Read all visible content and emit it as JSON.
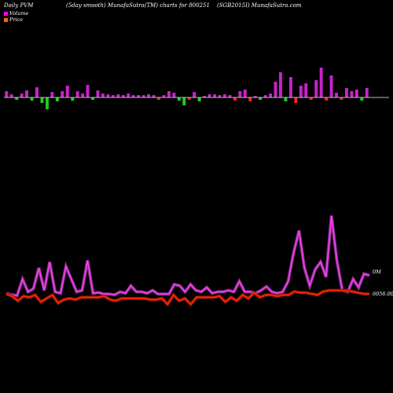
{
  "header": {
    "left": "Daily PVM",
    "middle": "(5day smooth) MunafaSutra(TM) charts for 800251",
    "right": "(SGB2015I) MunafaSutra.com"
  },
  "chart_data": {
    "type": "bar+line",
    "legend": [
      {
        "name": "Volume",
        "color": "#ff00ff"
      },
      {
        "name": "Price",
        "color": "#ff6600"
      }
    ],
    "volume": {
      "up_color": "#cc22cc",
      "down_color_neg": "#22cc22",
      "down_red": "#ff2222",
      "values": [
        8,
        4,
        -3,
        5,
        9,
        -4,
        13,
        -7,
        -15,
        7,
        -5,
        8,
        15,
        -4,
        8,
        5,
        16,
        -3,
        9,
        5,
        4,
        3,
        4,
        3,
        5,
        3,
        3,
        3,
        4,
        3,
        -3,
        3,
        8,
        6,
        -4,
        -10,
        -3,
        7,
        -5,
        2,
        4,
        4,
        3,
        4,
        3,
        -4,
        8,
        10,
        -5,
        2,
        -3,
        3,
        5,
        20,
        32,
        -5,
        26,
        -7,
        15,
        18,
        -3,
        22,
        38,
        -4,
        28,
        6,
        -3,
        12,
        8,
        10,
        -4,
        12
      ]
    },
    "volume_label_colors": "first series magenta=positive; green below axis; red below axis for some",
    "indicator_line": {
      "color": "#ee44ee",
      "values": [
        0.36,
        0.34,
        0.33,
        0.55,
        0.38,
        0.42,
        0.7,
        0.4,
        0.78,
        0.38,
        0.36,
        0.72,
        0.55,
        0.38,
        0.4,
        0.8,
        0.36,
        0.37,
        0.35,
        0.35,
        0.34,
        0.38,
        0.36,
        0.46,
        0.38,
        0.38,
        0.36,
        0.4,
        0.35,
        0.35,
        0.35,
        0.48,
        0.46,
        0.38,
        0.48,
        0.4,
        0.38,
        0.44,
        0.36,
        0.38,
        0.38,
        0.4,
        0.38,
        0.52,
        0.38,
        0.38,
        0.36,
        0.4,
        0.45,
        0.38,
        0.36,
        0.38,
        0.52,
        0.9,
        1.2,
        0.7,
        0.46,
        0.68,
        0.78,
        0.58,
        1.4,
        0.8,
        0.4,
        0.38,
        0.55,
        0.44,
        0.62,
        0.6
      ],
      "label": "0M"
    },
    "price_line": {
      "color": "#ff2200",
      "values": [
        6052,
        6048,
        6040,
        6048,
        6046,
        6050,
        6038,
        6044,
        6050,
        6036,
        6042,
        6044,
        6042,
        6046,
        6046,
        6046,
        6046,
        6048,
        6042,
        6040,
        6044,
        6044,
        6044,
        6044,
        6044,
        6042,
        6042,
        6044,
        6034,
        6050,
        6040,
        6044,
        6034,
        6046,
        6046,
        6046,
        6046,
        6048,
        6038,
        6046,
        6040,
        6050,
        6044,
        6054,
        6046,
        6050,
        6050,
        6048,
        6050,
        6050,
        6056,
        6054,
        6054,
        6052,
        6050,
        6056,
        6058,
        6058,
        6058,
        6058,
        6056,
        6054,
        6052,
        6052
      ],
      "label": "6056.00"
    },
    "title": "",
    "xlabel": "",
    "ylabel": ""
  }
}
